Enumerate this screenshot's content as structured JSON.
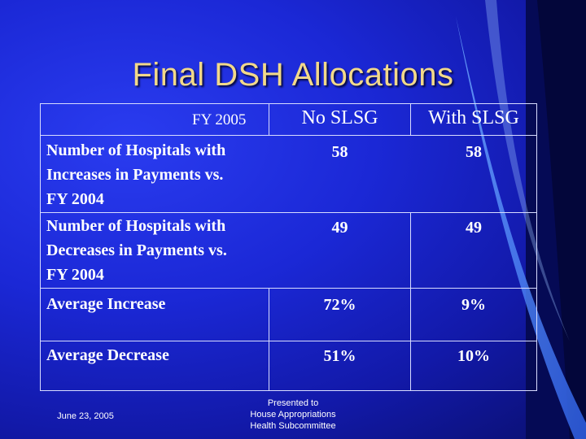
{
  "slide": {
    "title": "Final DSH Allocations",
    "table": {
      "header": {
        "corner": "FY 2005",
        "col1": "No SLSG",
        "col2": "With SLSG"
      },
      "rows": [
        {
          "label_lines": [
            "Number of Hospitals with",
            "Increases in Payments vs.",
            "FY 2004"
          ],
          "no_slsg": "58",
          "with_slsg": "58"
        },
        {
          "label_lines": [
            "Number of Hospitals with",
            "Decreases in Payments vs.",
            "FY 2004"
          ],
          "no_slsg": "49",
          "with_slsg": "49"
        },
        {
          "label_lines": [
            "Average Increase"
          ],
          "no_slsg": "72%",
          "with_slsg": "9%"
        },
        {
          "label_lines": [
            "Average Decrease"
          ],
          "no_slsg": "51%",
          "with_slsg": "10%"
        }
      ]
    },
    "footer": {
      "date": "June 23, 2005",
      "presented_lines": [
        "Presented to",
        "House Appropriations",
        "Health Subcommittee"
      ]
    }
  }
}
